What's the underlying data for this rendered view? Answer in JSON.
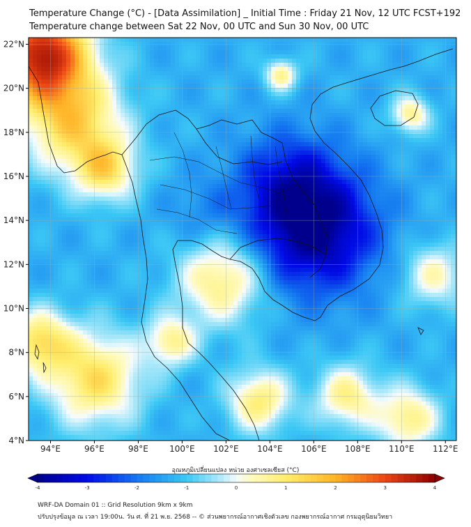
{
  "header": {
    "title_line1": "Temperature Change (°C) - [Data Assimilation] _ Initial Time : Friday 21 Nov, 12 UTC FCST+192",
    "title_line2": "Temperature change between Sat 22 Nov, 00 UTC and Sun 30 Nov, 00 UTC"
  },
  "map": {
    "lat_labels": [
      "22°N",
      "20°N",
      "18°N",
      "16°N",
      "14°N",
      "12°N",
      "10°N",
      "8°N",
      "6°N",
      "4°N"
    ],
    "lon_labels": [
      "94°E",
      "96°E",
      "98°E",
      "100°E",
      "102°E",
      "104°E",
      "106°E",
      "108°E",
      "110°E",
      "112°E"
    ],
    "lat_values": [
      22,
      20,
      18,
      16,
      14,
      12,
      10,
      8,
      6,
      4
    ],
    "lon_values": [
      94,
      96,
      98,
      100,
      102,
      104,
      106,
      108,
      110,
      112
    ],
    "lon_range": [
      93,
      112.5
    ],
    "lat_range": [
      4,
      22.3
    ],
    "field_blobs": [
      {
        "lon": 106.0,
        "lat": 13.6,
        "value": -4.0,
        "spread": 2.0
      },
      {
        "lon": 104.8,
        "lat": 15.8,
        "value": -2.5,
        "spread": 1.6
      },
      {
        "lon": 101.0,
        "lat": 14.2,
        "value": -1.8,
        "spread": 1.2
      },
      {
        "lon": 93.6,
        "lat": 21.6,
        "value": 3.5,
        "spread": 1.5
      },
      {
        "lon": 95.0,
        "lat": 18.5,
        "value": 1.3,
        "spread": 1.6
      },
      {
        "lon": 96.5,
        "lat": 16.3,
        "value": 0.9,
        "spread": 1.0
      },
      {
        "lon": 101.8,
        "lat": 11.3,
        "value": 0.9,
        "spread": 1.4
      },
      {
        "lon": 96.0,
        "lat": 6.8,
        "value": 1.2,
        "spread": 1.5
      },
      {
        "lon": 93.5,
        "lat": 8.5,
        "value": 1.1,
        "spread": 1.0
      },
      {
        "lon": 103.5,
        "lat": 5.8,
        "value": 0.9,
        "spread": 1.0
      },
      {
        "lon": 107.5,
        "lat": 6.0,
        "value": 0.7,
        "spread": 1.0
      },
      {
        "lon": 110.3,
        "lat": 5.0,
        "value": 0.8,
        "spread": 1.0
      },
      {
        "lon": 110.4,
        "lat": 18.8,
        "value": 0.7,
        "spread": 0.6
      },
      {
        "lon": 104.5,
        "lat": 20.6,
        "value": 0.7,
        "spread": 0.5
      },
      {
        "lon": 99.5,
        "lat": 8.5,
        "value": 0.6,
        "spread": 0.8
      },
      {
        "lon": 111.5,
        "lat": 11.5,
        "value": 0.3,
        "spread": 1.0
      }
    ],
    "background_value": -1.3,
    "colors": {
      "deep_blue": "#0000c8",
      "cyan": "#34c6f4",
      "white": "#f4fbfd",
      "yellow": "#fff07a",
      "red": "#e8261c",
      "dark_red": "#8b0000"
    }
  },
  "colorbar": {
    "label": "อุณหภูมิเปลี่ยนแปลง หน่วย องศาเซลเซียส (°C)",
    "tick_labels": [
      "-4",
      "-3",
      "-2",
      "-1",
      "0",
      "1",
      "2",
      "3",
      "4"
    ],
    "tick_values": [
      -4,
      -3,
      -2,
      -1,
      0,
      1,
      2,
      3,
      4
    ],
    "range": [
      -4,
      4
    ]
  },
  "footer": {
    "line1": "WRF-DA Domain 01 :: Grid Resolution 9km x 9km",
    "line2": "ปรับปรุงข้อมูล ณ เวลา 19:00น. วัน ศ. ที่ 21 พ.ย. 2568 -- © ส่วนพยากรณ์อากาศเชิงตัวเลข กองพยากรณ์อากาศ กรมอุตุนิยมวิทยา"
  }
}
